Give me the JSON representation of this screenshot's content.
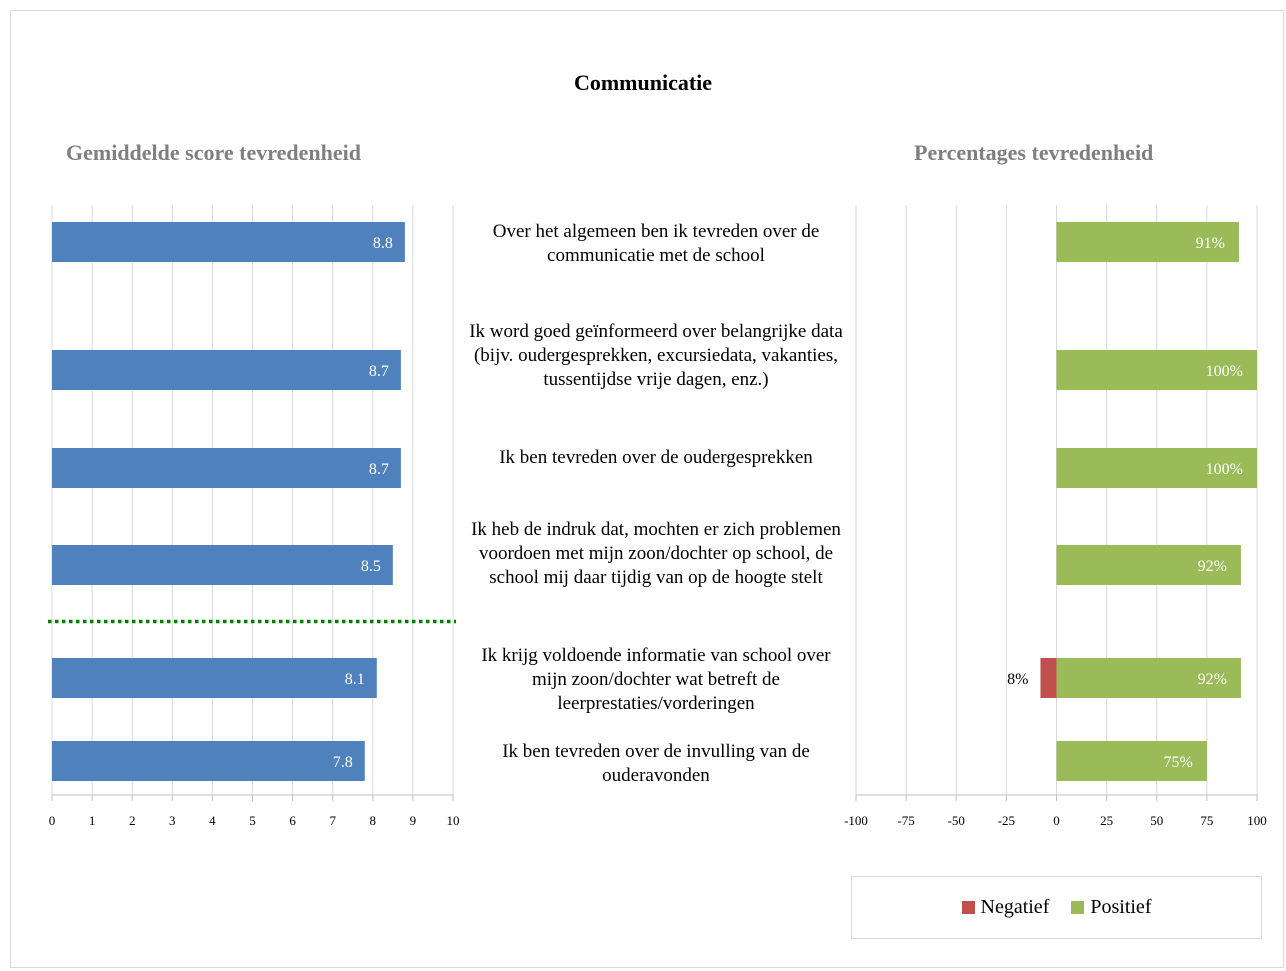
{
  "title": "Communicatie",
  "colors": {
    "avg_bar": "#4f81bd",
    "negatief": "#c0504d",
    "positief": "#9bbb59",
    "gridline": "#d9d9d9",
    "benchmark": "#008000"
  },
  "questions": [
    "Over het algemeen ben ik tevreden over de communicatie met de school",
    "Ik word goed geïnformeerd over belangrijke data (bijv. oudergesprekken, excursiedata, vakanties, tussentijdse vrije dagen, enz.)",
    "Ik ben tevreden over de oudergesprekken",
    "Ik heb de indruk dat, mochten er zich problemen voordoen met mijn zoon/dochter op school, de school mij daar tijdig van op de hoogte stelt",
    "Ik krijg voldoende informatie van school over mijn zoon/dochter wat betreft de leerprestaties/vorderingen",
    "Ik ben tevreden over de invulling van de ouderavonden"
  ],
  "legend": {
    "negatief": "Negatief",
    "positief": "Positief"
  },
  "chart_data": [
    {
      "type": "bar",
      "orientation": "horizontal",
      "title": "Gemiddelde score tevredenheid",
      "categories": [
        "Over het algemeen ben ik tevreden over de communicatie met de school",
        "Ik word goed geïnformeerd over belangrijke data (bijv. oudergesprekken, excursiedata, vakanties, tussentijdse vrije dagen, enz.)",
        "Ik ben tevreden over de oudergesprekken",
        "Ik heb de indruk dat, mochten er zich problemen voordoen met mijn zoon/dochter op school, de school mij daar tijdig van op de hoogte stelt",
        "Ik krijg voldoende informatie van school over mijn zoon/dochter wat betreft de leerprestaties/vorderingen",
        "Ik ben tevreden over de invulling van de ouderavonden"
      ],
      "values": [
        8.8,
        8.7,
        8.7,
        8.5,
        8.1,
        7.8
      ],
      "data_labels": [
        "8.8",
        "8.7",
        "8.7",
        "8.5",
        "8.1",
        "7.8"
      ],
      "xlim": [
        0,
        10
      ],
      "xticks": [
        0,
        1,
        2,
        3,
        4,
        5,
        6,
        7,
        8,
        9,
        10
      ],
      "benchmark_line": "dotted green separator between rows 4 and 5",
      "grid": true
    },
    {
      "type": "bar",
      "orientation": "horizontal",
      "stacked": true,
      "title": "Percentages tevredenheid",
      "categories": [
        "Over het algemeen ben ik tevreden over de communicatie met de school",
        "Ik word goed geïnformeerd over belangrijke data (bijv. oudergesprekken, excursiedata, vakanties, tussentijdse vrije dagen, enz.)",
        "Ik ben tevreden over de oudergesprekken",
        "Ik heb de indruk dat, mochten er zich problemen voordoen met mijn zoon/dochter op school, de school mij daar tijdig van op de hoogte stelt",
        "Ik krijg voldoende informatie van school over mijn zoon/dochter wat betreft de leerprestaties/vorderingen",
        "Ik ben tevreden over de invulling van de ouderavonden"
      ],
      "series": [
        {
          "name": "Negatief",
          "values": [
            0,
            0,
            0,
            0,
            -8,
            0
          ],
          "labels": [
            "",
            "",
            "",
            "",
            "8%",
            ""
          ]
        },
        {
          "name": "Positief",
          "values": [
            91,
            100,
            100,
            92,
            92,
            75
          ],
          "labels": [
            "91%",
            "100%",
            "100%",
            "92%",
            "92%",
            "75%"
          ]
        }
      ],
      "xlim": [
        -100,
        100
      ],
      "xticks": [
        -100,
        -75,
        -50,
        -25,
        0,
        25,
        50,
        75,
        100
      ],
      "grid": true,
      "legend_position": "bottom"
    }
  ]
}
